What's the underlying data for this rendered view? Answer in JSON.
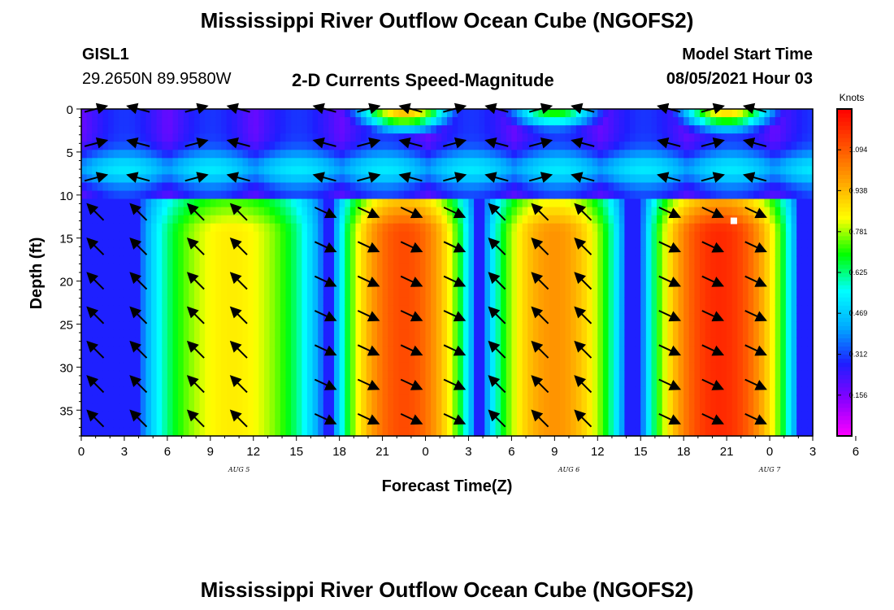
{
  "header": {
    "title": "Mississippi River Outflow Ocean Cube (NGOFS2)",
    "station_id": "GISL1",
    "coordinates": "29.2650N  89.9580W",
    "subtitle": "2-D Currents Speed-Magnitude",
    "model_start_label": "Model Start Time",
    "model_start_value": "08/05/2021 Hour 03"
  },
  "footer": {
    "title": "Mississippi River Outflow Ocean Cube (NGOFS2)"
  },
  "chart_data": {
    "type": "heatmap",
    "title": "2-D Currents Speed-Magnitude",
    "xlabel": "Forecast Time(Z)",
    "ylabel": "Depth (ft)",
    "x_range_hours": [
      0,
      51
    ],
    "ylim": [
      0,
      38
    ],
    "y_inverted": true,
    "y_ticks": [
      0,
      5,
      10,
      15,
      20,
      25,
      30,
      35
    ],
    "x_tick_labels": [
      "0",
      "3",
      "6",
      "9",
      "12",
      "15",
      "18",
      "21",
      "0",
      "3",
      "6",
      "9",
      "12",
      "15",
      "18",
      "21",
      "0",
      "3",
      "6"
    ],
    "date_labels": [
      {
        "text": "AUG 5",
        "hour": 11
      },
      {
        "text": "AUG 6",
        "hour": 34
      },
      {
        "text": "AUG 7",
        "hour": 48
      }
    ],
    "colorbar": {
      "title": "Knots",
      "range": [
        0,
        1.25
      ],
      "tick_values": [
        0.156,
        0.312,
        0.469,
        0.625,
        0.781,
        0.938,
        1.094
      ],
      "tick_labels": [
        "0.156",
        "0.312",
        "0.469",
        "0.625",
        "0.781",
        "0.938",
        "1.094"
      ]
    },
    "surface_layer_max_depth_ft": 10,
    "speed_maxima_below_10ft": [
      {
        "center_hour": 10.5,
        "peak_knots": 0.86,
        "half_width_hours": 6.5,
        "direction": "flood"
      },
      {
        "center_hour": 22.5,
        "peak_knots": 1.12,
        "half_width_hours": 5.0,
        "direction": "ebb"
      },
      {
        "center_hour": 33.0,
        "peak_knots": 1.0,
        "half_width_hours": 5.0,
        "direction": "flood"
      },
      {
        "center_hour": 44.5,
        "peak_knots": 1.18,
        "half_width_hours": 5.5,
        "direction": "ebb"
      }
    ],
    "speed_maxima_surface": [
      {
        "center_hour": 22.5,
        "peak_knots": 0.95
      },
      {
        "center_hour": 33.0,
        "peak_knots": 0.72
      },
      {
        "center_hour": 45.0,
        "peak_knots": 0.9
      }
    ],
    "arrow_depths_ft": [
      0,
      4,
      8,
      12,
      16,
      20,
      24,
      28,
      32,
      36
    ],
    "arrow_hours": [
      1,
      4,
      8,
      11,
      17,
      20,
      23,
      26,
      29,
      32,
      35,
      41,
      44,
      47
    ],
    "marker": {
      "hour": 45.5,
      "depth_ft": 13,
      "color": "#ffffff"
    },
    "colors": {
      "scale": [
        "#ff00ff",
        "#8a00ff",
        "#1e1eff",
        "#00aaff",
        "#00ffff",
        "#00ff00",
        "#ffff00",
        "#ffa500",
        "#ff5000",
        "#ff0000"
      ],
      "plot_border": "#000000",
      "arrows": "#000000"
    }
  }
}
